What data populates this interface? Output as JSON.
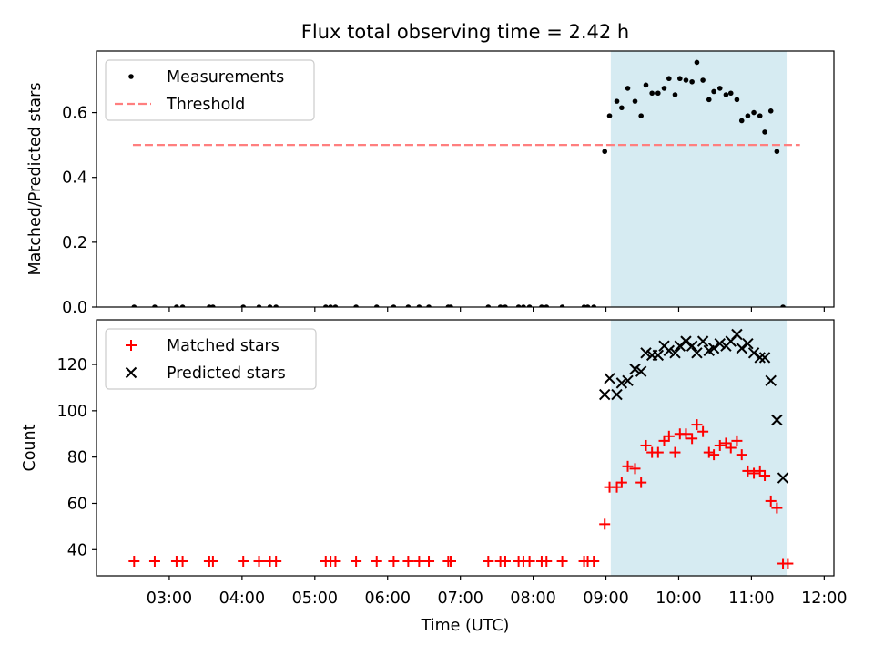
{
  "title": "Flux total observing time = 2.42 h",
  "colors": {
    "measurements": "#000000",
    "threshold": "#ff7f7f",
    "matched": "#ff0000",
    "predicted": "#000000",
    "span": "#add8e6"
  },
  "chart_data": [
    {
      "type": "scatter",
      "ylabel": "Matched/Predicted stars",
      "xlabel": "",
      "xlim": [
        "02:00",
        "12:08"
      ],
      "ylim": [
        0,
        0.79
      ],
      "yticks": [
        0.0,
        0.2,
        0.4,
        0.6
      ],
      "ytick_labels": [
        "0.0",
        "0.2",
        "0.4",
        "0.6"
      ],
      "shaded_span": [
        "09:04",
        "11:29"
      ],
      "legend": {
        "position": "top-left",
        "entries": [
          "Measurements",
          "Threshold"
        ]
      },
      "threshold": {
        "name": "Threshold",
        "y": 0.5,
        "x_start": "02:30",
        "x_end": "11:40"
      },
      "series": [
        {
          "name": "Measurements",
          "points": [
            [
              "02:31",
              0
            ],
            [
              "02:48",
              0
            ],
            [
              "03:06",
              0
            ],
            [
              "03:11",
              0
            ],
            [
              "03:33",
              0
            ],
            [
              "03:36",
              0
            ],
            [
              "04:01",
              0
            ],
            [
              "04:14",
              0
            ],
            [
              "04:23",
              0
            ],
            [
              "04:28",
              0
            ],
            [
              "05:09",
              0
            ],
            [
              "05:13",
              0
            ],
            [
              "05:17",
              0
            ],
            [
              "05:34",
              0
            ],
            [
              "05:51",
              0
            ],
            [
              "06:05",
              0
            ],
            [
              "06:17",
              0
            ],
            [
              "06:26",
              0
            ],
            [
              "06:34",
              0
            ],
            [
              "06:50",
              0
            ],
            [
              "06:52",
              0
            ],
            [
              "07:23",
              0
            ],
            [
              "07:33",
              0
            ],
            [
              "07:37",
              0
            ],
            [
              "07:48",
              0
            ],
            [
              "07:52",
              0
            ],
            [
              "07:57",
              0
            ],
            [
              "08:07",
              0
            ],
            [
              "08:11",
              0
            ],
            [
              "08:24",
              0
            ],
            [
              "08:42",
              0
            ],
            [
              "08:45",
              0
            ],
            [
              "08:50",
              0
            ],
            [
              "08:59",
              0.48
            ],
            [
              "09:03",
              0.59
            ],
            [
              "09:09",
              0.635
            ],
            [
              "09:13",
              0.615
            ],
            [
              "09:18",
              0.675
            ],
            [
              "09:24",
              0.635
            ],
            [
              "09:29",
              0.59
            ],
            [
              "09:33",
              0.685
            ],
            [
              "09:38",
              0.66
            ],
            [
              "09:43",
              0.66
            ],
            [
              "09:48",
              0.675
            ],
            [
              "09:52",
              0.705
            ],
            [
              "09:57",
              0.655
            ],
            [
              "10:01",
              0.705
            ],
            [
              "10:06",
              0.7
            ],
            [
              "10:11",
              0.695
            ],
            [
              "10:15",
              0.755
            ],
            [
              "10:20",
              0.7
            ],
            [
              "10:25",
              0.64
            ],
            [
              "10:29",
              0.665
            ],
            [
              "10:34",
              0.675
            ],
            [
              "10:39",
              0.655
            ],
            [
              "10:43",
              0.66
            ],
            [
              "10:48",
              0.64
            ],
            [
              "10:52",
              0.575
            ],
            [
              "10:57",
              0.59
            ],
            [
              "11:02",
              0.6
            ],
            [
              "11:07",
              0.59
            ],
            [
              "11:11",
              0.54
            ],
            [
              "11:16",
              0.605
            ],
            [
              "11:21",
              0.48
            ],
            [
              "11:26",
              0
            ]
          ]
        }
      ]
    },
    {
      "type": "scatter",
      "ylabel": "Count",
      "xlabel": "Time (UTC)",
      "xlim": [
        "02:00",
        "12:08"
      ],
      "ylim": [
        28.7,
        139.3
      ],
      "yticks": [
        40,
        60,
        80,
        100,
        120
      ],
      "ytick_labels": [
        "40",
        "60",
        "80",
        "100",
        "120"
      ],
      "xticks": [
        "03:00",
        "04:00",
        "05:00",
        "06:00",
        "07:00",
        "08:00",
        "09:00",
        "10:00",
        "11:00",
        "12:00"
      ],
      "shaded_span": [
        "09:04",
        "11:29"
      ],
      "legend": {
        "position": "top-left",
        "entries": [
          "Matched stars",
          "Predicted stars"
        ]
      },
      "series": [
        {
          "name": "Matched stars",
          "marker": "+",
          "points": [
            [
              "02:31",
              35
            ],
            [
              "02:48",
              35
            ],
            [
              "03:06",
              35
            ],
            [
              "03:11",
              35
            ],
            [
              "03:33",
              35
            ],
            [
              "03:36",
              35
            ],
            [
              "04:01",
              35
            ],
            [
              "04:14",
              35
            ],
            [
              "04:23",
              35
            ],
            [
              "04:28",
              35
            ],
            [
              "05:09",
              35
            ],
            [
              "05:13",
              35
            ],
            [
              "05:17",
              35
            ],
            [
              "05:34",
              35
            ],
            [
              "05:51",
              35
            ],
            [
              "06:05",
              35
            ],
            [
              "06:17",
              35
            ],
            [
              "06:26",
              35
            ],
            [
              "06:34",
              35
            ],
            [
              "06:50",
              35
            ],
            [
              "06:52",
              35
            ],
            [
              "07:23",
              35
            ],
            [
              "07:33",
              35
            ],
            [
              "07:37",
              35
            ],
            [
              "07:48",
              35
            ],
            [
              "07:52",
              35
            ],
            [
              "07:57",
              35
            ],
            [
              "08:07",
              35
            ],
            [
              "08:11",
              35
            ],
            [
              "08:24",
              35
            ],
            [
              "08:42",
              35
            ],
            [
              "08:45",
              35
            ],
            [
              "08:50",
              35
            ],
            [
              "08:59",
              51
            ],
            [
              "09:03",
              67
            ],
            [
              "09:09",
              67
            ],
            [
              "09:13",
              69
            ],
            [
              "09:18",
              76
            ],
            [
              "09:24",
              75
            ],
            [
              "09:29",
              69
            ],
            [
              "09:33",
              85
            ],
            [
              "09:38",
              82
            ],
            [
              "09:43",
              82
            ],
            [
              "09:48",
              87
            ],
            [
              "09:52",
              89
            ],
            [
              "09:57",
              82
            ],
            [
              "10:01",
              90
            ],
            [
              "10:06",
              90
            ],
            [
              "10:11",
              88
            ],
            [
              "10:15",
              94
            ],
            [
              "10:20",
              91
            ],
            [
              "10:25",
              82
            ],
            [
              "10:29",
              81
            ],
            [
              "10:34",
              85
            ],
            [
              "10:39",
              86
            ],
            [
              "10:43",
              84
            ],
            [
              "10:48",
              87
            ],
            [
              "10:52",
              81
            ],
            [
              "10:57",
              74
            ],
            [
              "11:02",
              73
            ],
            [
              "11:07",
              74
            ],
            [
              "11:11",
              72
            ],
            [
              "11:16",
              61
            ],
            [
              "11:21",
              58
            ],
            [
              "11:26",
              34
            ],
            [
              "11:30",
              34
            ]
          ]
        },
        {
          "name": "Predicted stars",
          "marker": "x",
          "points": [
            [
              "08:59",
              107
            ],
            [
              "09:03",
              114
            ],
            [
              "09:09",
              107
            ],
            [
              "09:13",
              112
            ],
            [
              "09:18",
              113
            ],
            [
              "09:24",
              118
            ],
            [
              "09:29",
              117
            ],
            [
              "09:33",
              125
            ],
            [
              "09:38",
              124
            ],
            [
              "09:43",
              124
            ],
            [
              "09:48",
              128
            ],
            [
              "09:52",
              126
            ],
            [
              "09:57",
              125
            ],
            [
              "10:01",
              128
            ],
            [
              "10:06",
              130
            ],
            [
              "10:11",
              128
            ],
            [
              "10:15",
              125
            ],
            [
              "10:20",
              130
            ],
            [
              "10:25",
              126
            ],
            [
              "10:29",
              127
            ],
            [
              "10:34",
              129
            ],
            [
              "10:39",
              128
            ],
            [
              "10:43",
              130
            ],
            [
              "10:48",
              133
            ],
            [
              "10:52",
              127
            ],
            [
              "10:57",
              129
            ],
            [
              "11:02",
              125
            ],
            [
              "11:07",
              123
            ],
            [
              "11:11",
              123
            ],
            [
              "11:16",
              113
            ],
            [
              "11:21",
              96
            ],
            [
              "11:26",
              71
            ]
          ]
        }
      ]
    }
  ]
}
